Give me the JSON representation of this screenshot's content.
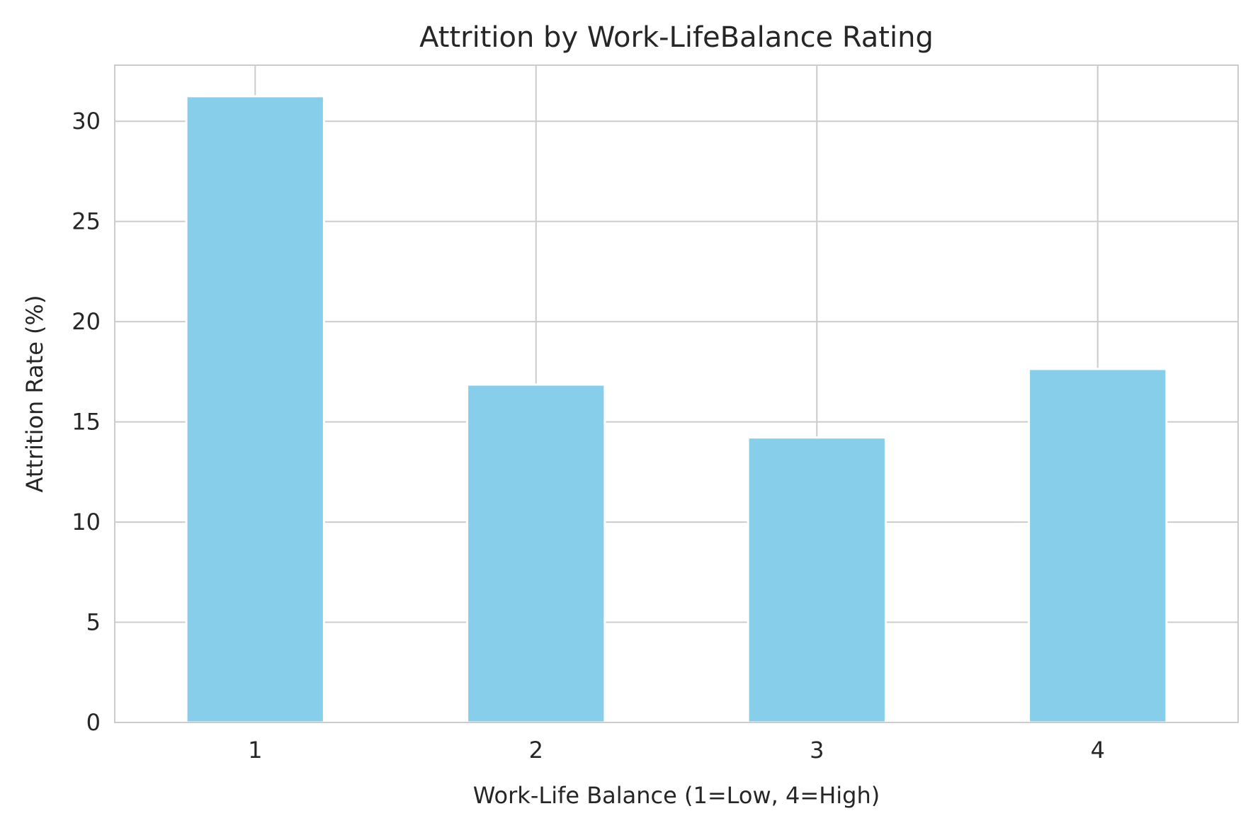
{
  "chart_data": {
    "type": "bar",
    "title": "Attrition by Work-LifeBalance Rating",
    "xlabel": "Work-Life Balance (1=Low, 4=High)",
    "ylabel": "Attrition Rate (%)",
    "categories": [
      "1",
      "2",
      "3",
      "4"
    ],
    "values": [
      31.25,
      16.86,
      14.22,
      17.64
    ],
    "ylim": [
      0,
      32.8
    ],
    "yticks": [
      0,
      5,
      10,
      15,
      20,
      25,
      30
    ],
    "grid": true,
    "bar_color": "#87CEEB",
    "grid_color": "#cccccc",
    "frame_color": "#cccccc"
  }
}
